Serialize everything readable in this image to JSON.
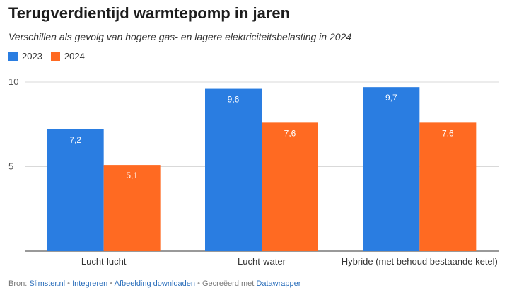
{
  "chart_data": {
    "type": "bar",
    "title": "Terugverdientijd warmtepomp in jaren",
    "subtitle": "Verschillen als gevolg van hogere gas- en lagere elektriciteitsbelasting in 2024",
    "categories": [
      "Lucht-lucht",
      "Lucht-water",
      "Hybride (met behoud bestaande ketel)"
    ],
    "series": [
      {
        "name": "2023",
        "values": [
          7.2,
          9.6,
          9.7
        ],
        "labels": [
          "7,2",
          "9,6",
          "9,7"
        ],
        "color": "#2a7de1"
      },
      {
        "name": "2024",
        "values": [
          5.1,
          7.6,
          7.6
        ],
        "labels": [
          "5,1",
          "7,6",
          "7,6"
        ],
        "color": "#ff6a22"
      }
    ],
    "ylim": [
      0,
      10
    ],
    "yticks": [
      5,
      10
    ],
    "xlabel": "",
    "ylabel": "",
    "grid": true,
    "legend_position": "top-left"
  },
  "footer": {
    "source_prefix": "Bron:",
    "source_link": "Slimster.nl",
    "sep1": "•",
    "embed_link": "Integreren",
    "sep2": "•",
    "download_link": "Afbeelding downloaden",
    "sep3": "•",
    "created_with": "Gecreëerd met",
    "datawrapper_link": "Datawrapper"
  }
}
